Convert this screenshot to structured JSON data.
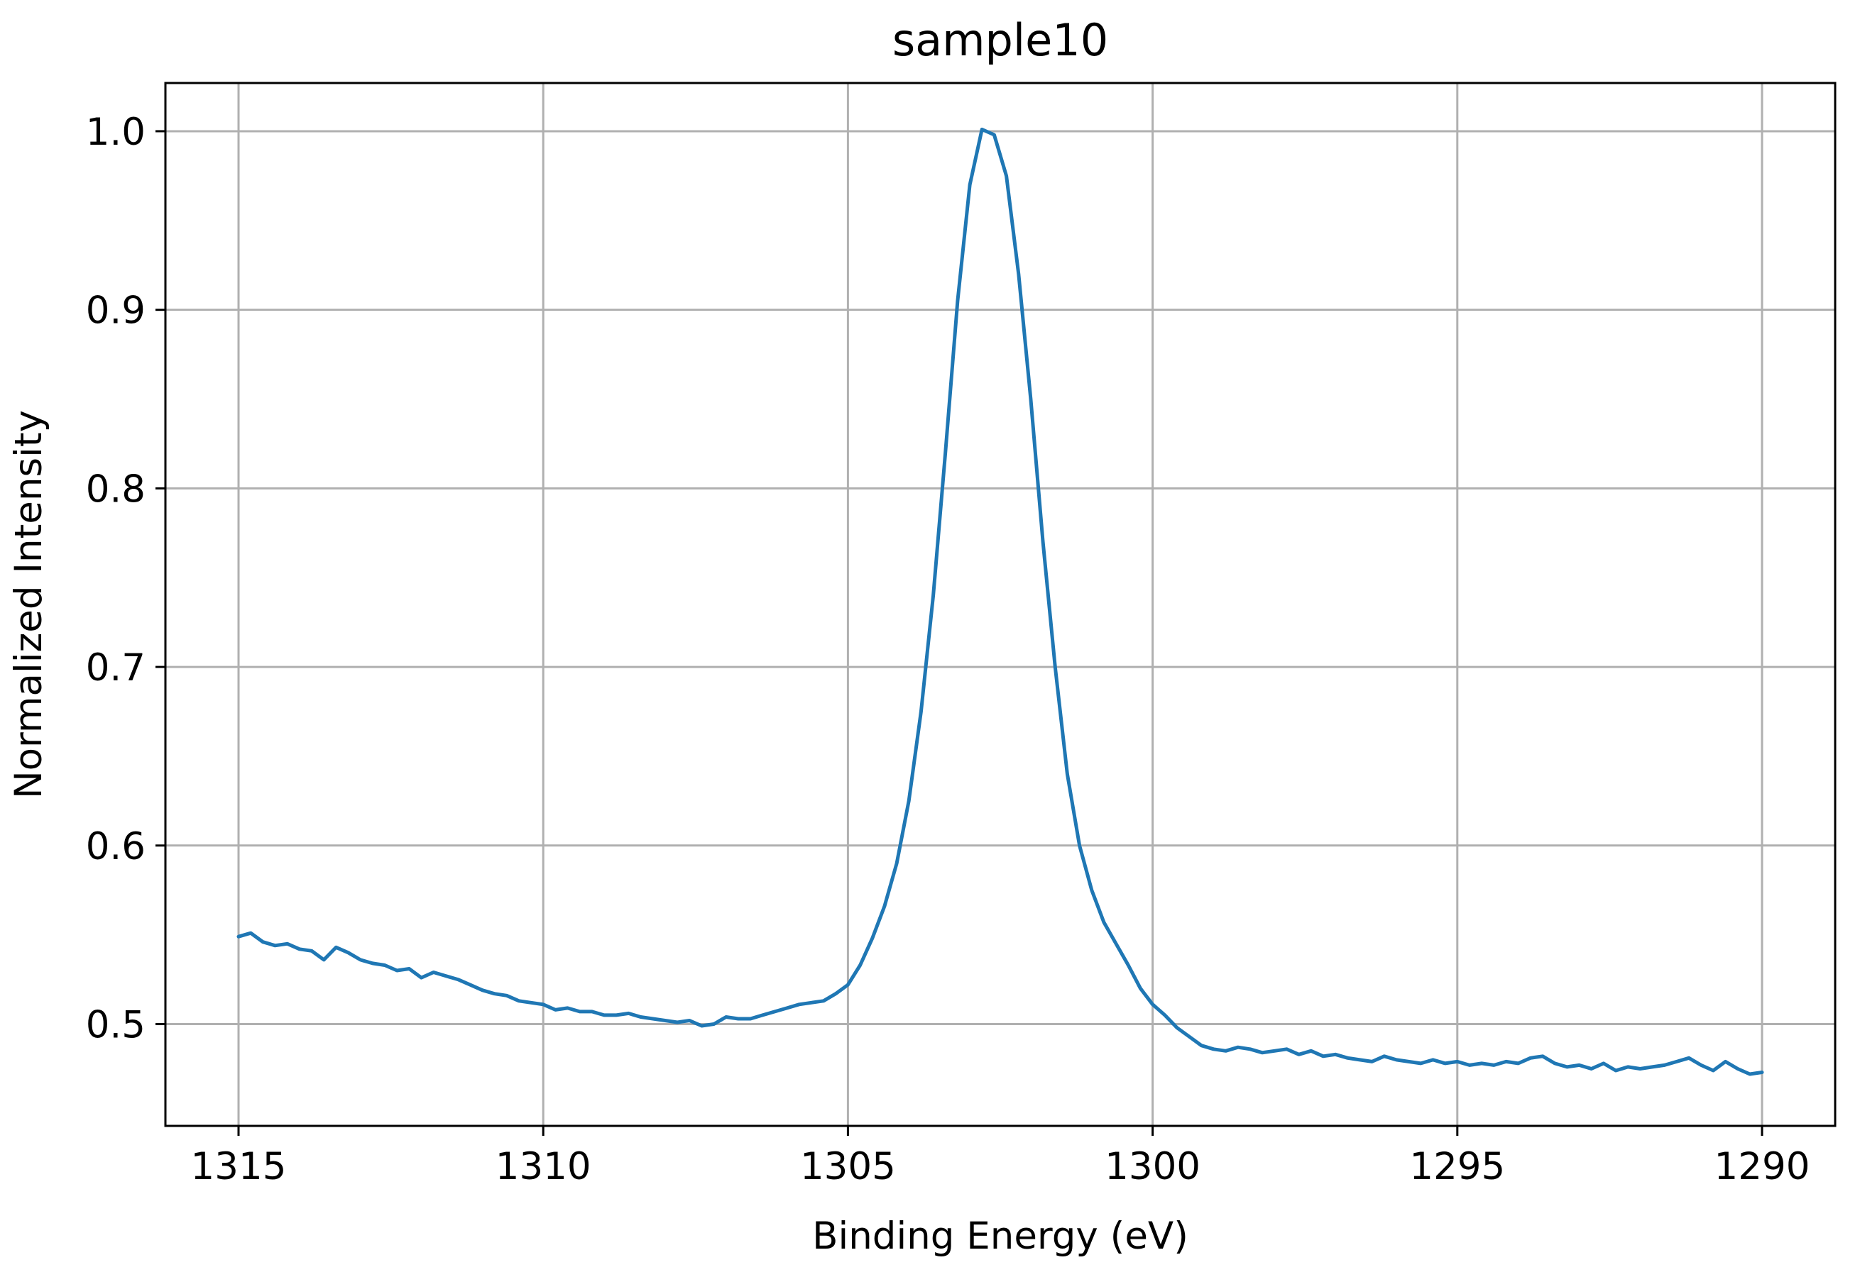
{
  "chart_data": {
    "type": "line",
    "title": "sample10",
    "xlabel": "Binding Energy (eV)",
    "ylabel": "Normalized Intensity",
    "xlim": [
      1316.2,
      1288.8
    ],
    "ylim": [
      0.443,
      1.027
    ],
    "x_reversed": true,
    "grid": true,
    "xticks": [
      1315,
      1310,
      1305,
      1300,
      1295,
      1290
    ],
    "xtick_labels": [
      "1315",
      "1310",
      "1305",
      "1300",
      "1295",
      "1290"
    ],
    "yticks": [
      0.5,
      0.6,
      0.7,
      0.8,
      0.9,
      1.0
    ],
    "ytick_labels": [
      "0.5",
      "0.6",
      "0.7",
      "0.8",
      "0.9",
      "1.0"
    ],
    "series": [
      {
        "color": "#1f77b4",
        "x": [
          1315.0,
          1314.8,
          1314.6,
          1314.4,
          1314.2,
          1314.0,
          1313.8,
          1313.6,
          1313.4,
          1313.2,
          1313.0,
          1312.8,
          1312.6,
          1312.4,
          1312.2,
          1312.0,
          1311.8,
          1311.6,
          1311.4,
          1311.2,
          1311.0,
          1310.8,
          1310.6,
          1310.4,
          1310.2,
          1310.0,
          1309.8,
          1309.6,
          1309.4,
          1309.2,
          1309.0,
          1308.8,
          1308.6,
          1308.4,
          1308.2,
          1308.0,
          1307.8,
          1307.6,
          1307.4,
          1307.2,
          1307.0,
          1306.8,
          1306.6,
          1306.4,
          1306.2,
          1306.0,
          1305.8,
          1305.6,
          1305.4,
          1305.2,
          1305.0,
          1304.8,
          1304.6,
          1304.4,
          1304.2,
          1304.0,
          1303.8,
          1303.6,
          1303.4,
          1303.2,
          1303.0,
          1302.8,
          1302.6,
          1302.4,
          1302.2,
          1302.0,
          1301.8,
          1301.6,
          1301.4,
          1301.2,
          1301.0,
          1300.8,
          1300.6,
          1300.4,
          1300.2,
          1300.0,
          1299.8,
          1299.6,
          1299.4,
          1299.2,
          1299.0,
          1298.8,
          1298.6,
          1298.4,
          1298.2,
          1298.0,
          1297.8,
          1297.6,
          1297.4,
          1297.2,
          1297.0,
          1296.8,
          1296.6,
          1296.4,
          1296.2,
          1296.0,
          1295.8,
          1295.6,
          1295.4,
          1295.2,
          1295.0,
          1294.8,
          1294.6,
          1294.4,
          1294.2,
          1294.0,
          1293.8,
          1293.6,
          1293.4,
          1293.2,
          1293.0,
          1292.8,
          1292.6,
          1292.4,
          1292.2,
          1292.0,
          1291.8,
          1291.6,
          1291.4,
          1291.2,
          1291.0,
          1290.8,
          1290.6,
          1290.4,
          1290.2,
          1290.0
        ],
        "y": [
          0.549,
          0.551,
          0.546,
          0.544,
          0.545,
          0.542,
          0.541,
          0.536,
          0.543,
          0.54,
          0.536,
          0.534,
          0.533,
          0.53,
          0.531,
          0.526,
          0.529,
          0.527,
          0.525,
          0.522,
          0.519,
          0.517,
          0.516,
          0.513,
          0.512,
          0.511,
          0.508,
          0.509,
          0.507,
          0.507,
          0.505,
          0.505,
          0.506,
          0.504,
          0.503,
          0.502,
          0.501,
          0.502,
          0.499,
          0.5,
          0.504,
          0.503,
          0.503,
          0.505,
          0.507,
          0.509,
          0.511,
          0.512,
          0.513,
          0.517,
          0.522,
          0.533,
          0.548,
          0.566,
          0.59,
          0.625,
          0.675,
          0.74,
          0.82,
          0.905,
          0.97,
          1.001,
          0.998,
          0.975,
          0.92,
          0.85,
          0.77,
          0.7,
          0.64,
          0.6,
          0.575,
          0.557,
          0.545,
          0.533,
          0.52,
          0.511,
          0.505,
          0.498,
          0.493,
          0.488,
          0.486,
          0.485,
          0.487,
          0.486,
          0.484,
          0.485,
          0.486,
          0.483,
          0.485,
          0.482,
          0.483,
          0.481,
          0.48,
          0.479,
          0.482,
          0.48,
          0.479,
          0.478,
          0.48,
          0.478,
          0.479,
          0.477,
          0.478,
          0.477,
          0.479,
          0.478,
          0.481,
          0.482,
          0.478,
          0.476,
          0.477,
          0.475,
          0.478,
          0.474,
          0.476,
          0.475,
          0.476,
          0.477,
          0.479,
          0.481,
          0.477,
          0.474,
          0.479,
          0.475,
          0.472,
          0.473
        ]
      }
    ]
  }
}
